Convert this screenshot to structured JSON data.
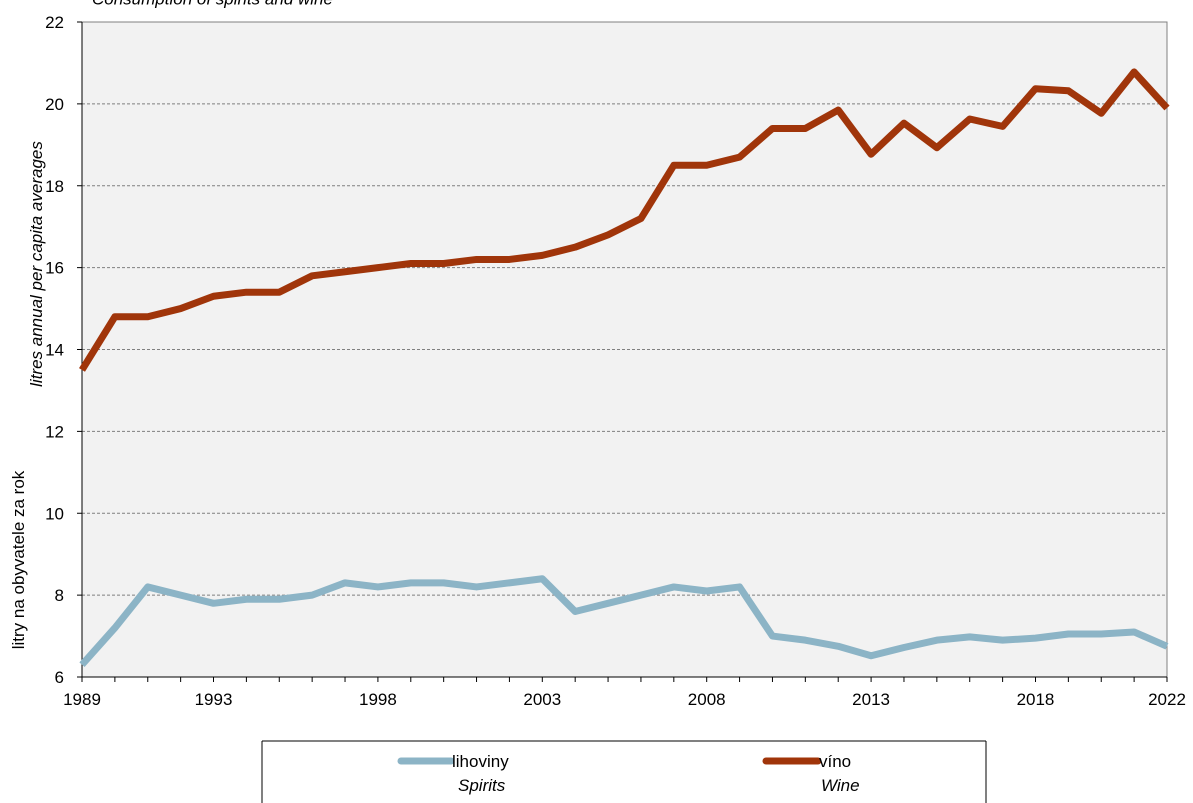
{
  "chart_data": {
    "type": "line",
    "title": "Consumption of spirits and wine",
    "ylabel": "litres annual per capita averages",
    "ylabel_secondary": "litry na obyvatele za rok",
    "xlabel": "",
    "ylim": [
      6,
      22
    ],
    "yticks": [
      6,
      8,
      10,
      12,
      14,
      16,
      18,
      20,
      22
    ],
    "xlim": [
      1989,
      2022
    ],
    "xticks": [
      1989,
      1993,
      1998,
      2003,
      2008,
      2013,
      2018,
      2022
    ],
    "grid": true,
    "legend_position": "bottom",
    "x": [
      1989,
      1990,
      1991,
      1992,
      1993,
      1994,
      1995,
      1996,
      1997,
      1998,
      1999,
      2000,
      2001,
      2002,
      2003,
      2004,
      2005,
      2006,
      2007,
      2008,
      2009,
      2010,
      2011,
      2012,
      2013,
      2014,
      2015,
      2016,
      2017,
      2018,
      2019,
      2020,
      2021,
      2022
    ],
    "series": [
      {
        "name": "lihoviny",
        "name_en": "Spirits",
        "color": "#8CB4C6",
        "values": [
          6.3,
          7.2,
          8.2,
          8.0,
          7.8,
          7.9,
          7.9,
          8.0,
          8.3,
          8.2,
          8.3,
          8.3,
          8.2,
          8.3,
          8.4,
          7.6,
          7.8,
          8.0,
          8.2,
          8.1,
          8.2,
          7.0,
          6.9,
          6.75,
          6.52,
          6.72,
          6.9,
          6.98,
          6.9,
          6.95,
          7.05,
          7.05,
          7.1,
          6.75
        ]
      },
      {
        "name": "víno",
        "name_en": "Wine",
        "color": "#A0350A",
        "values": [
          13.5,
          14.8,
          14.8,
          15.0,
          15.3,
          15.4,
          15.4,
          15.8,
          15.9,
          16.0,
          16.1,
          16.1,
          16.2,
          16.2,
          16.3,
          16.5,
          16.8,
          17.2,
          18.5,
          18.5,
          18.7,
          19.4,
          19.4,
          19.85,
          18.77,
          19.53,
          18.93,
          19.63,
          19.45,
          20.37,
          20.32,
          19.77,
          20.78,
          19.9
        ]
      }
    ]
  }
}
